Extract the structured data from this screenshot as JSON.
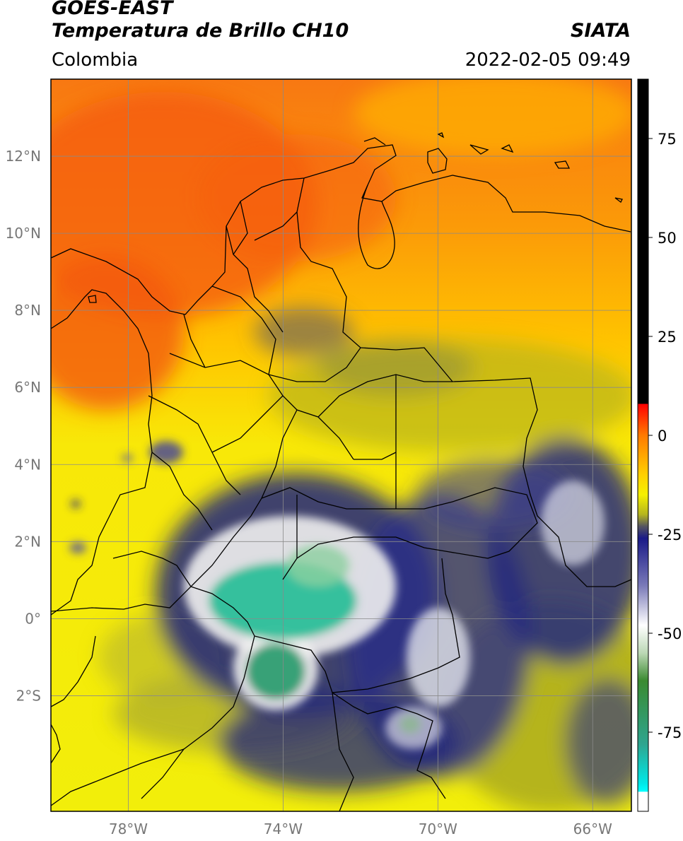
{
  "header": {
    "satellite": "GOES-EAST",
    "product": "Temperatura de Brillo CH10",
    "region": "Colombia",
    "source": "SIATA",
    "datetime": "2022-02-05 09:49"
  },
  "map": {
    "lon_range": [
      -80.0,
      -65.0
    ],
    "lat_range": [
      -5.0,
      14.0
    ],
    "lon_ticks": [
      {
        "value": -78,
        "label": "78°W"
      },
      {
        "value": -74,
        "label": "74°W"
      },
      {
        "value": -70,
        "label": "70°W"
      },
      {
        "value": -66,
        "label": "66°W"
      }
    ],
    "lat_ticks": [
      {
        "value": 12,
        "label": "12°N"
      },
      {
        "value": 10,
        "label": "10°N"
      },
      {
        "value": 8,
        "label": "8°N"
      },
      {
        "value": 6,
        "label": "6°N"
      },
      {
        "value": 4,
        "label": "4°N"
      },
      {
        "value": 2,
        "label": "2°N"
      },
      {
        "value": 0,
        "label": "0°"
      },
      {
        "value": -2,
        "label": "2°S"
      }
    ],
    "grid": true,
    "colors": {
      "warm": "#f25a0d",
      "mid": "#ffa000",
      "cool": "#f5ee05",
      "olive": "#a8a822",
      "navy": "#1e237e",
      "white": "#f2f2f2",
      "teal": "#2dbf9a"
    }
  },
  "colorbar": {
    "range": [
      -95,
      90
    ],
    "ticks": [
      75,
      50,
      25,
      0,
      -25,
      -50,
      -75
    ],
    "tick_labels": [
      "75",
      "50",
      "25",
      "0",
      "-25",
      "-50",
      "-75"
    ],
    "stops": [
      {
        "v": 90,
        "c": "#000000"
      },
      {
        "v": 8,
        "c": "#000000"
      },
      {
        "v": 7.9,
        "c": "#ff0000"
      },
      {
        "v": 0,
        "c": "#ff7a00"
      },
      {
        "v": -10,
        "c": "#ffd000"
      },
      {
        "v": -15,
        "c": "#f5f000"
      },
      {
        "v": -20,
        "c": "#b5b51f"
      },
      {
        "v": -23,
        "c": "#555560"
      },
      {
        "v": -26,
        "c": "#1a1a88"
      },
      {
        "v": -38,
        "c": "#7a7ab8"
      },
      {
        "v": -48,
        "c": "#ffffff"
      },
      {
        "v": -55,
        "c": "#bcd8b5"
      },
      {
        "v": -62,
        "c": "#3a8a30"
      },
      {
        "v": -78,
        "c": "#2ea58f"
      },
      {
        "v": -88,
        "c": "#00e8e8"
      },
      {
        "v": -90,
        "c": "#00ffff"
      },
      {
        "v": -90.1,
        "c": "#ffffff"
      },
      {
        "v": -95,
        "c": "#ffffff"
      }
    ]
  }
}
